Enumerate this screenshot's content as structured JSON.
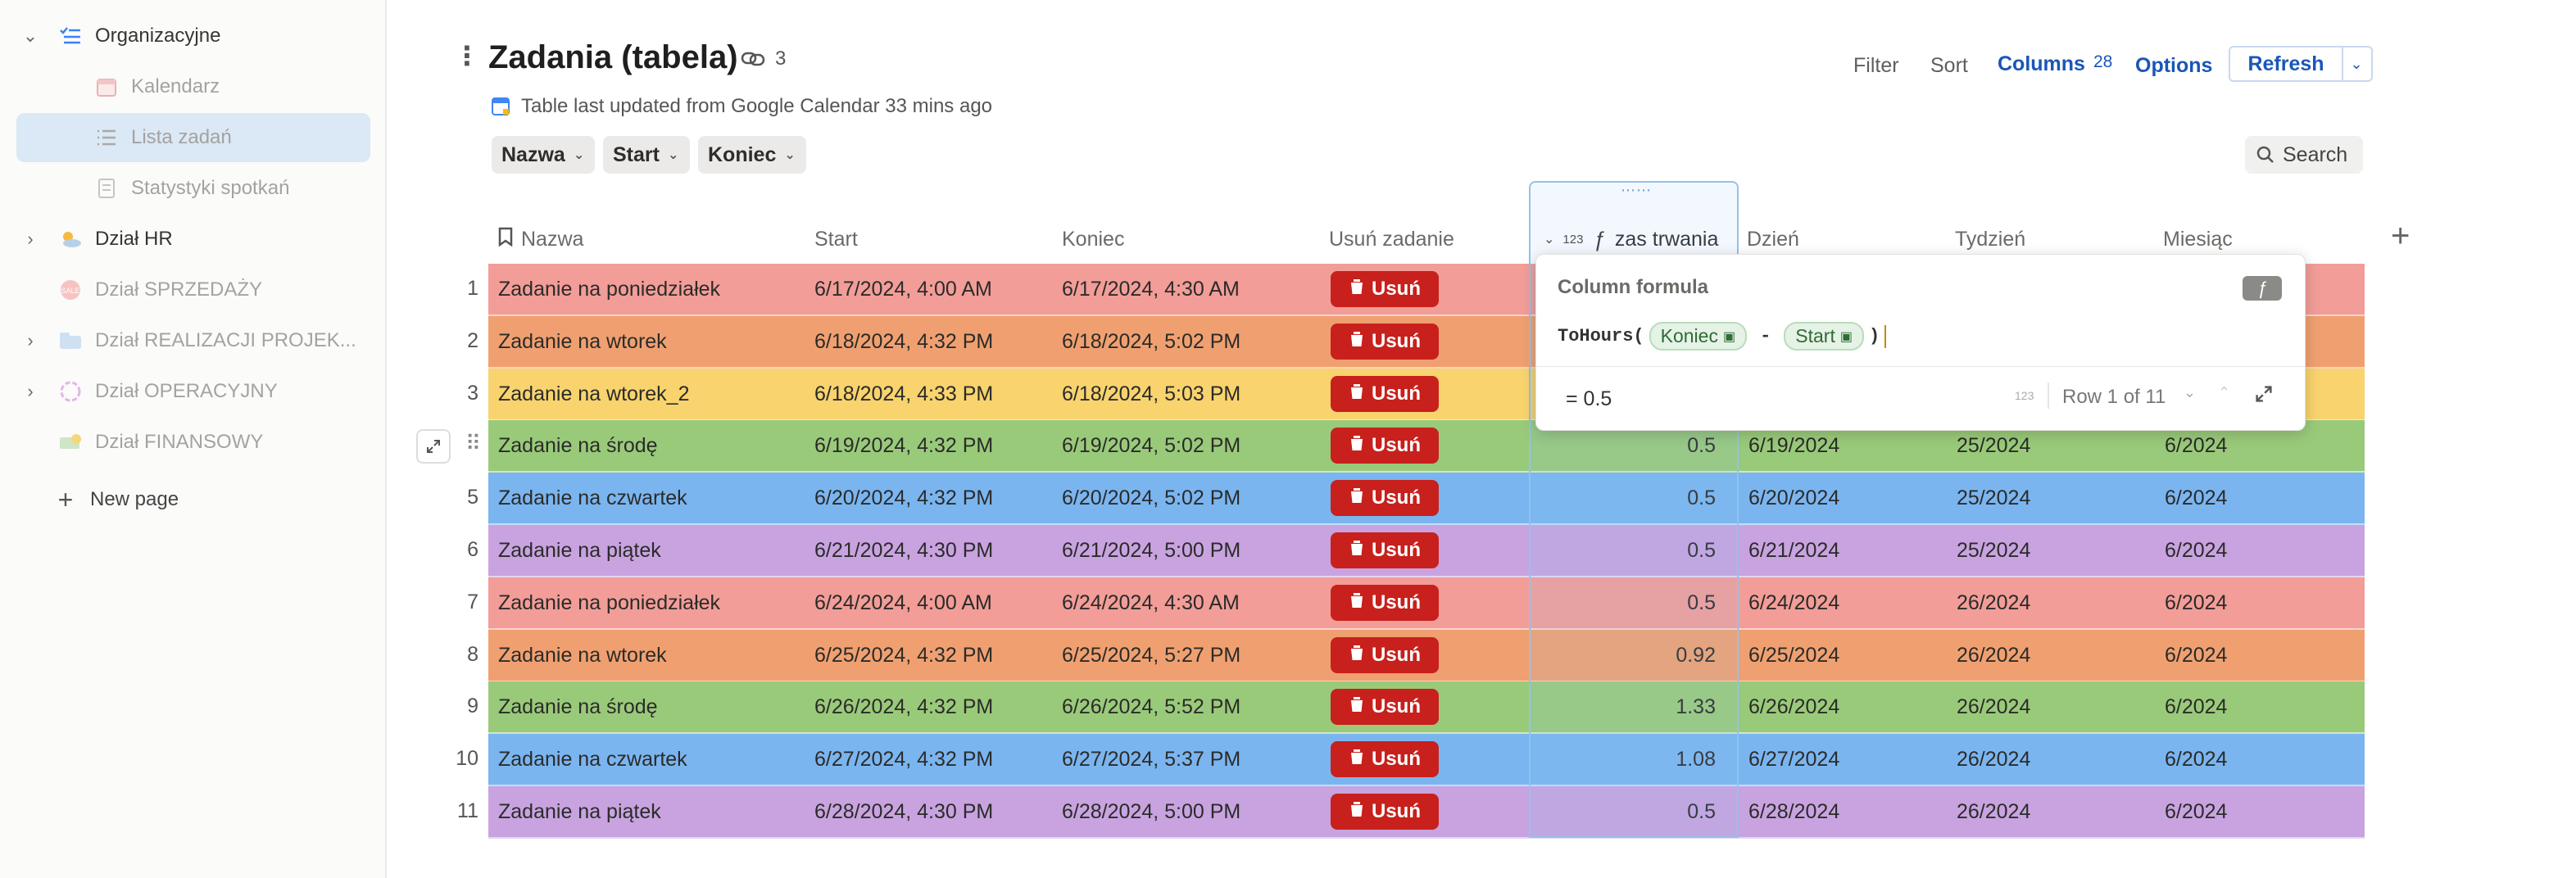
{
  "sidebar": {
    "items": [
      {
        "label": "Organizacyjne",
        "icon": "list-check-icon",
        "chevron": "⌄",
        "faded": false
      },
      {
        "label": "Kalendarz",
        "icon": "calendar-icon",
        "chevron": "",
        "faded": true
      },
      {
        "label": "Lista zadań",
        "icon": "list-icon",
        "chevron": "",
        "faded": true
      },
      {
        "label": "Statystyki spotkań",
        "icon": "document-icon",
        "chevron": "",
        "faded": true
      },
      {
        "label": "Dział HR",
        "icon": "weather-icon",
        "chevron": "›",
        "faded": false
      },
      {
        "label": "Dział SPRZEDAŻY",
        "icon": "sales-icon",
        "chevron": "",
        "faded": true
      },
      {
        "label": "Dział REALIZACJI PROJEK...",
        "icon": "folder-icon",
        "chevron": "›",
        "faded": true
      },
      {
        "label": "Dział OPERACYJNY",
        "icon": "network-icon",
        "chevron": "›",
        "faded": true
      },
      {
        "label": "Dział FINANSOWY",
        "icon": "money-icon",
        "chevron": "",
        "faded": true
      }
    ],
    "new_page": "New page"
  },
  "header": {
    "title": "Zadania (tabela)",
    "link_count": "3",
    "subtitle": "Table last updated from Google Calendar 33 mins ago",
    "toolbar": {
      "filter": "Filter",
      "sort": "Sort",
      "columns": "Columns",
      "columns_count": "28",
      "options": "Options",
      "refresh": "Refresh",
      "search": "Search"
    },
    "chips": [
      "Nazwa",
      "Start",
      "Koniec"
    ]
  },
  "table": {
    "columns": [
      "Nazwa",
      "Start",
      "Koniec",
      "Usuń zadanie",
      "zas trwania",
      "Dzień",
      "Tydzień",
      "Miesiąc"
    ],
    "col_type": "123",
    "delete_label": "Usuń",
    "rows": [
      {
        "num": "1",
        "name": "Zadanie na poniedziałek",
        "start": "6/17/2024, 4:00 AM",
        "end": "6/17/2024, 4:30 AM",
        "dur": "",
        "day": "",
        "week": "",
        "month": "",
        "color": "#f29d98"
      },
      {
        "num": "2",
        "name": "Zadanie na wtorek",
        "start": "6/18/2024, 4:32 PM",
        "end": "6/18/2024, 5:02 PM",
        "dur": "",
        "day": "",
        "week": "",
        "month": "",
        "color": "#f0a070"
      },
      {
        "num": "3",
        "name": "Zadanie na wtorek_2",
        "start": "6/18/2024, 4:33 PM",
        "end": "6/18/2024, 5:03 PM",
        "dur": "",
        "day": "",
        "week": "",
        "month": "",
        "color": "#f8d36e"
      },
      {
        "num": "",
        "name": "Zadanie na środę",
        "start": "6/19/2024, 4:32 PM",
        "end": "6/19/2024, 5:02 PM",
        "dur": "0.5",
        "day": "6/19/2024",
        "week": "25/2024",
        "month": "6/2024",
        "color": "#99ca7a"
      },
      {
        "num": "5",
        "name": "Zadanie na czwartek",
        "start": "6/20/2024, 4:32 PM",
        "end": "6/20/2024, 5:02 PM",
        "dur": "0.5",
        "day": "6/20/2024",
        "week": "25/2024",
        "month": "6/2024",
        "color": "#7ab5f0"
      },
      {
        "num": "6",
        "name": "Zadanie na piątek",
        "start": "6/21/2024, 4:30 PM",
        "end": "6/21/2024, 5:00 PM",
        "dur": "0.5",
        "day": "6/21/2024",
        "week": "25/2024",
        "month": "6/2024",
        "color": "#c8a3e0"
      },
      {
        "num": "7",
        "name": "Zadanie na poniedziałek",
        "start": "6/24/2024, 4:00 AM",
        "end": "6/24/2024, 4:30 AM",
        "dur": "0.5",
        "day": "6/24/2024",
        "week": "26/2024",
        "month": "6/2024",
        "color": "#f29d98"
      },
      {
        "num": "8",
        "name": "Zadanie na wtorek",
        "start": "6/25/2024, 4:32 PM",
        "end": "6/25/2024, 5:27 PM",
        "dur": "0.92",
        "day": "6/25/2024",
        "week": "26/2024",
        "month": "6/2024",
        "color": "#f0a070"
      },
      {
        "num": "9",
        "name": "Zadanie na środę",
        "start": "6/26/2024, 4:32 PM",
        "end": "6/26/2024, 5:52 PM",
        "dur": "1.33",
        "day": "6/26/2024",
        "week": "26/2024",
        "month": "6/2024",
        "color": "#99ca7a"
      },
      {
        "num": "10",
        "name": "Zadanie na czwartek",
        "start": "6/27/2024, 4:32 PM",
        "end": "6/27/2024, 5:37 PM",
        "dur": "1.08",
        "day": "6/27/2024",
        "week": "26/2024",
        "month": "6/2024",
        "color": "#7ab5f0"
      },
      {
        "num": "11",
        "name": "Zadanie na piątek",
        "start": "6/28/2024, 4:30 PM",
        "end": "6/28/2024, 5:00 PM",
        "dur": "0.5",
        "day": "6/28/2024",
        "week": "26/2024",
        "month": "6/2024",
        "color": "#c8a3e0"
      }
    ]
  },
  "formula_popup": {
    "title": "Column formula",
    "fn": "ToHours(",
    "arg1": "Koniec",
    "op": "-",
    "arg2": "Start",
    "close": ")",
    "result": "= 0.5",
    "result_type": "123",
    "row_info": "Row 1 of 11"
  }
}
